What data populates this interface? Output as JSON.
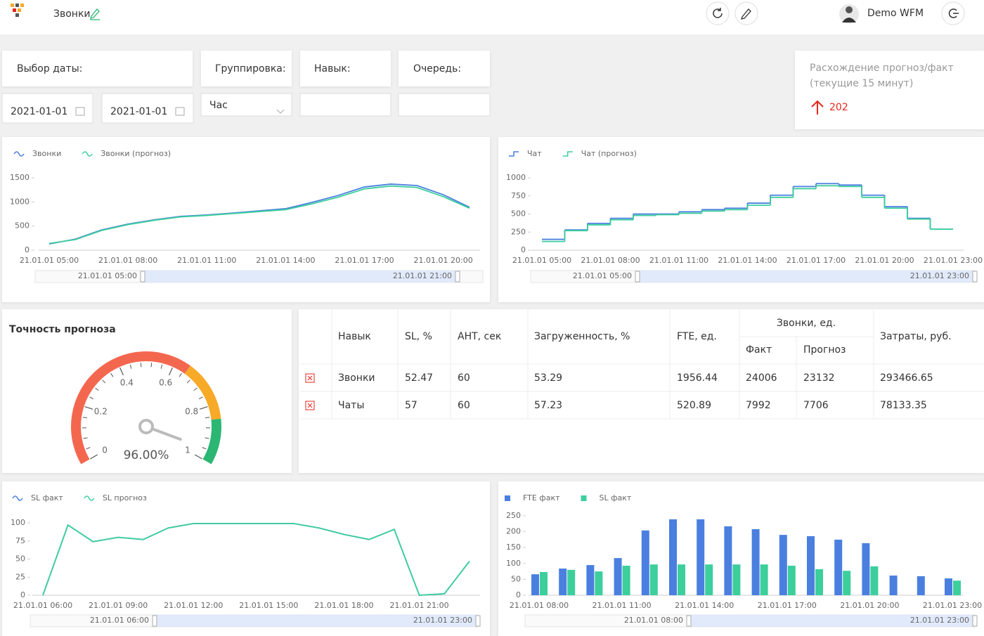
{
  "header": {
    "title": "Звонки",
    "user": "Demo WFM"
  },
  "filters": {
    "date": {
      "label": "Выбор даты:",
      "from": "2021-01-01",
      "to": "2021-01-01"
    },
    "grouping": {
      "label": "Группировка:",
      "value": "Час"
    },
    "skill": {
      "label": "Навык:"
    },
    "queue": {
      "label": "Очередь:"
    }
  },
  "deviation": {
    "title": "Расхождение прогноз/факт",
    "subtitle": "(текущие 15 минут)",
    "value": 202,
    "color": "#e8261c"
  },
  "charts": [
    {
      "type": "line",
      "categories": [
        "21.01.01 05:00",
        null,
        null,
        "21.01.01 08:00",
        null,
        null,
        "21.01.01 11:00",
        null,
        null,
        "21.01.01 14:00",
        null,
        null,
        "21.01.01 17:00",
        null,
        null,
        "21.01.01 20:00",
        null
      ],
      "series": [
        {
          "name": "Звонки",
          "color": "#4a7fe0",
          "values": [
            130,
            230,
            420,
            540,
            630,
            700,
            730,
            770,
            815,
            860,
            990,
            1135,
            1310,
            1370,
            1340,
            1150,
            890
          ]
        },
        {
          "name": "Звонки (прогноз)",
          "color": "#3ccf9c",
          "values": [
            140,
            220,
            410,
            530,
            620,
            690,
            720,
            760,
            800,
            840,
            960,
            1100,
            1270,
            1330,
            1300,
            1110,
            870
          ]
        }
      ],
      "ylim": [
        0,
        1500
      ],
      "yticks": [
        0,
        500,
        1000,
        1500
      ],
      "zoom": [
        "21.01.01 05:00",
        "21.01.01 21:00"
      ]
    },
    {
      "type": "step",
      "categories": [
        "21.01.01 05:00",
        null,
        null,
        "21.01.01 08:00",
        null,
        null,
        "21.01.01 11:00",
        null,
        null,
        "21.01.01 14:00",
        null,
        null,
        "21.01.01 17:00",
        null,
        null,
        "21.01.01 20:00",
        null,
        null,
        "21.01.01 23:00"
      ],
      "series": [
        {
          "name": "Чат",
          "color": "#4a7fe0",
          "values": [
            150,
            280,
            370,
            440,
            500,
            500,
            530,
            560,
            580,
            650,
            760,
            880,
            920,
            900,
            760,
            600,
            440,
            290,
            290
          ]
        },
        {
          "name": "Чат (прогноз)",
          "color": "#3ccf9c",
          "values": [
            120,
            270,
            350,
            420,
            480,
            490,
            510,
            540,
            560,
            620,
            730,
            850,
            890,
            880,
            730,
            580,
            430,
            290,
            290
          ]
        }
      ],
      "ylim": [
        0,
        1000
      ],
      "yticks": [
        0,
        250,
        500,
        750,
        1000
      ],
      "zoom": [
        "21.01.01 05:00",
        "21.01.01 23:00"
      ]
    },
    {
      "type": "line",
      "categories": [
        "21.01.01 06:00",
        null,
        null,
        "21.01.01 09:00",
        null,
        null,
        "21.01.01 12:00",
        null,
        null,
        "21.01.01 15:00",
        null,
        null,
        "21.01.01 18:00",
        null,
        null,
        "21.01.01 21:00",
        null,
        null
      ],
      "series": [
        {
          "name": "SL факт",
          "color": "#4a7fe0",
          "values": [
            0,
            97,
            74,
            80,
            77,
            93,
            99,
            99,
            99,
            99,
            99,
            93,
            84,
            77,
            91,
            0,
            2,
            47
          ]
        },
        {
          "name": "SL прогноз",
          "color": "#3ccf9c",
          "values": [
            0,
            97,
            74,
            80,
            77,
            93,
            99,
            99,
            99,
            99,
            99,
            93,
            84,
            77,
            91,
            0,
            2,
            47
          ]
        }
      ],
      "ylim": [
        0,
        100
      ],
      "yticks": [
        0,
        25,
        50,
        75,
        100
      ],
      "zoom": [
        "21.01.01 06:00",
        "21.01.01 23:00"
      ]
    },
    {
      "type": "bar",
      "categories": [
        "21.01.01 08:00",
        null,
        null,
        "21.01.01 11:00",
        null,
        null,
        "21.01.01 14:00",
        null,
        null,
        "21.01.01 17:00",
        null,
        null,
        "21.01.01 20:00",
        null,
        null,
        "21.01.01 23:00"
      ],
      "series": [
        {
          "name": "FTE факт",
          "color": "#4a7fe0",
          "values": [
            66,
            84,
            95,
            117,
            204,
            239,
            239,
            217,
            208,
            190,
            186,
            175,
            164,
            62,
            60,
            53
          ]
        },
        {
          "name": "SL факт",
          "color": "#3ccf9c",
          "values": [
            73,
            80,
            75,
            93,
            97,
            97,
            97,
            97,
            97,
            93,
            82,
            77,
            91,
            0,
            0,
            46
          ]
        }
      ],
      "ylim": [
        0,
        250
      ],
      "yticks": [
        0,
        50,
        100,
        150,
        200,
        250
      ],
      "zoom": [
        "21.01.01 08:00",
        "21.01.01 23:00"
      ]
    }
  ],
  "gauge": {
    "title": "Точность прогноза",
    "value": 0.96,
    "value_label": "96.00%",
    "range": [
      0,
      1
    ],
    "ticks": [
      0,
      0.2,
      0.4,
      0.6,
      0.8,
      1
    ],
    "bands": [
      {
        "to": 0.65,
        "color": "#f4674f"
      },
      {
        "to": 0.85,
        "color": "#f7a928"
      },
      {
        "to": 1,
        "color": "#2bb673"
      }
    ]
  },
  "table": {
    "headers": [
      "Навык",
      "SL, %",
      "АНТ, сек",
      "Загруженность, %",
      "FTE, ед.",
      "Звонки, ед.",
      "Затраты, руб."
    ],
    "subheaders": [
      "Факт",
      "Прогноз"
    ],
    "rows": [
      [
        "Звонки",
        52.47,
        60,
        53.29,
        1956.44,
        24006,
        23132,
        293466.65
      ],
      [
        "Чаты",
        57,
        60,
        57.23,
        520.89,
        7992,
        7706,
        78133.35
      ]
    ]
  }
}
